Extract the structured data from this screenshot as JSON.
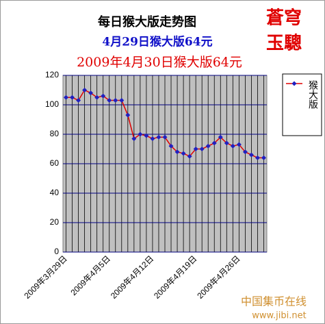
{
  "chart_data": {
    "type": "line",
    "title": "每日猴大版走势图",
    "subtitles": [
      {
        "text": "4月29日猴大版64元",
        "color": "#1010c8"
      },
      {
        "text": "2009年4月30日猴大版64元",
        "color": "#e00000"
      }
    ],
    "annotations": [
      "蒼穹",
      "玉驄",
      "中国集币在线",
      "www.jibi.net"
    ],
    "categories": [
      "2009年3月29日",
      null,
      null,
      null,
      null,
      null,
      null,
      "2009年4月5日",
      null,
      null,
      null,
      null,
      null,
      null,
      "2009年4月12日",
      null,
      null,
      null,
      null,
      null,
      null,
      "2009年4月19日",
      null,
      null,
      null,
      null,
      null,
      null,
      "2009年4月26日",
      null,
      null,
      null,
      null
    ],
    "series": [
      {
        "name": "猴大版",
        "color": "#e00000",
        "marker_color": "#2020c0",
        "values": [
          105,
          105,
          103,
          110,
          108,
          105,
          106,
          103,
          103,
          103,
          93,
          77,
          80,
          79,
          77,
          78,
          78,
          72,
          68,
          67,
          65,
          70,
          70,
          72,
          74,
          78,
          74,
          72,
          73,
          68,
          66,
          64,
          64
        ]
      }
    ],
    "ylim": [
      0,
      120
    ],
    "yticks": [
      0,
      20,
      40,
      60,
      80,
      100,
      120
    ],
    "grid": true,
    "legend": "right"
  }
}
